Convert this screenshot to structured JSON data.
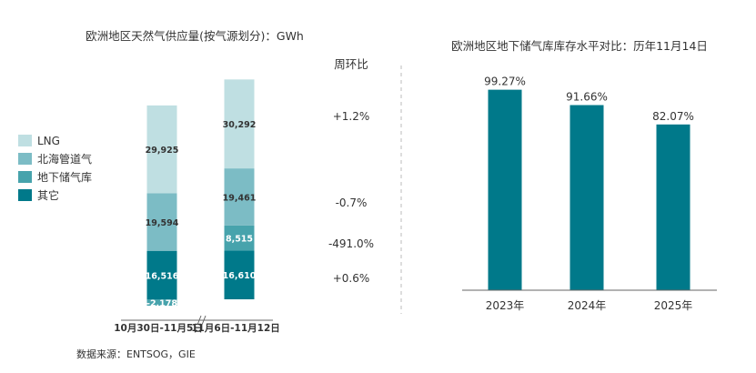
{
  "colors": {
    "lng": "#bfdfe2",
    "pipeline": "#7cbcc5",
    "storage": "#47a3ac",
    "other": "#00798a",
    "bar2": "#00798a",
    "text": "#333333",
    "divider": "#bbbbbb"
  },
  "source": "数据来源：ENTSOG，GIE",
  "chart_data": [
    {
      "type": "stacked-bar",
      "title": "欧洲地区天然气供应量(按气源划分)：GWh",
      "categories": [
        "10月30日-11月5日",
        "11月6日-11月12日"
      ],
      "series": [
        {
          "name": "其它",
          "color_key": "other",
          "values": [
            16516,
            16610
          ],
          "labels": [
            "16,516",
            "16,610"
          ]
        },
        {
          "name": "地下储气库",
          "color_key": "storage",
          "values": [
            -2178,
            8515
          ],
          "labels": [
            "-2,178",
            "8,515"
          ]
        },
        {
          "name": "北海管道气",
          "color_key": "pipeline",
          "values": [
            19594,
            19461
          ],
          "labels": [
            "19,594",
            "19,461"
          ]
        },
        {
          "name": "LNG",
          "color_key": "lng",
          "values": [
            29925,
            30292
          ],
          "labels": [
            "29,925",
            "30,292"
          ]
        }
      ],
      "legend": [
        "LNG",
        "北海管道气",
        "地下储气库",
        "其它"
      ],
      "wow_title": "周环比",
      "wow": [
        {
          "series": "LNG",
          "text": "+1.2%"
        },
        {
          "series": "北海管道气",
          "text": "-0.7%"
        },
        {
          "series": "地下储气库",
          "text": "-491.0%"
        },
        {
          "series": "其它",
          "text": "+0.6%"
        }
      ],
      "ylim": [
        -3000,
        80000
      ]
    },
    {
      "type": "bar",
      "title": "欧洲地区地下储气库库存水平对比：历年11月14日",
      "categories": [
        "2023年",
        "2024年",
        "2025年"
      ],
      "values": [
        99.27,
        91.66,
        82.07
      ],
      "value_labels": [
        "99.27%",
        "91.66%",
        "82.07%"
      ],
      "unit": "%",
      "ylim": [
        0,
        100
      ]
    }
  ]
}
